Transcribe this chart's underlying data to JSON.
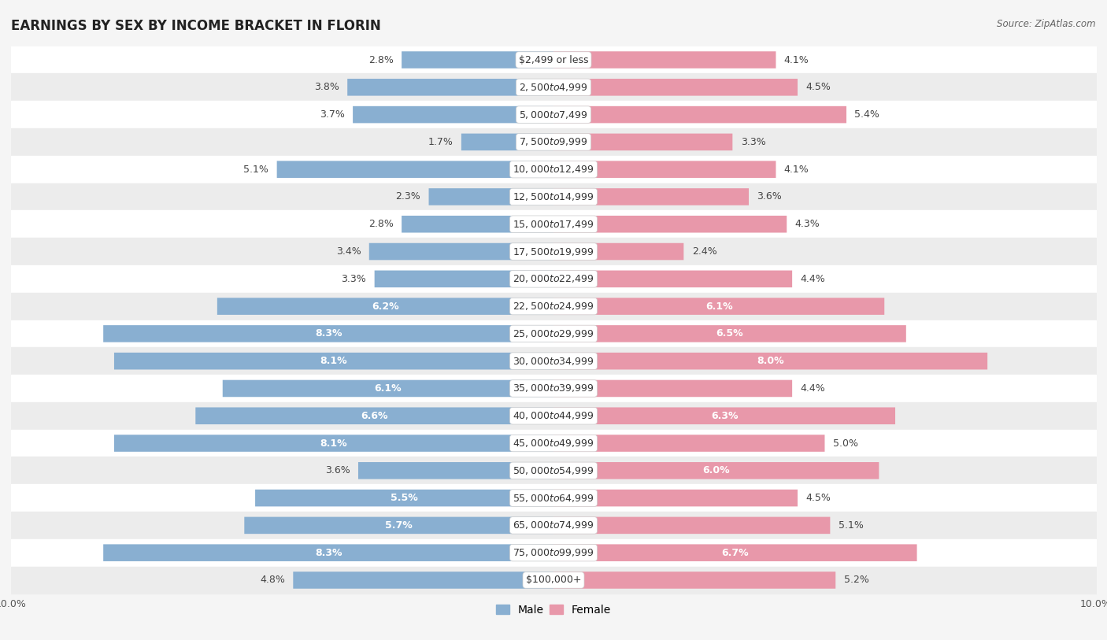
{
  "title": "EARNINGS BY SEX BY INCOME BRACKET IN FLORIN",
  "source": "Source: ZipAtlas.com",
  "categories": [
    "$2,499 or less",
    "$2,500 to $4,999",
    "$5,000 to $7,499",
    "$7,500 to $9,999",
    "$10,000 to $12,499",
    "$12,500 to $14,999",
    "$15,000 to $17,499",
    "$17,500 to $19,999",
    "$20,000 to $22,499",
    "$22,500 to $24,999",
    "$25,000 to $29,999",
    "$30,000 to $34,999",
    "$35,000 to $39,999",
    "$40,000 to $44,999",
    "$45,000 to $49,999",
    "$50,000 to $54,999",
    "$55,000 to $64,999",
    "$65,000 to $74,999",
    "$75,000 to $99,999",
    "$100,000+"
  ],
  "male_values": [
    2.8,
    3.8,
    3.7,
    1.7,
    5.1,
    2.3,
    2.8,
    3.4,
    3.3,
    6.2,
    8.3,
    8.1,
    6.1,
    6.6,
    8.1,
    3.6,
    5.5,
    5.7,
    8.3,
    4.8
  ],
  "female_values": [
    4.1,
    4.5,
    5.4,
    3.3,
    4.1,
    3.6,
    4.3,
    2.4,
    4.4,
    6.1,
    6.5,
    8.0,
    4.4,
    6.3,
    5.0,
    6.0,
    4.5,
    5.1,
    6.7,
    5.2
  ],
  "male_color": "#89afd1",
  "female_color": "#e898aa",
  "bg_color_light": "#f5f5f5",
  "bg_color_dark": "#e8e8e8",
  "row_light": "#ffffff",
  "row_dark": "#ececec",
  "axis_max": 10.0,
  "title_fontsize": 12,
  "label_fontsize": 9,
  "tick_fontsize": 9,
  "source_fontsize": 8.5,
  "val_label_threshold": 5.5
}
